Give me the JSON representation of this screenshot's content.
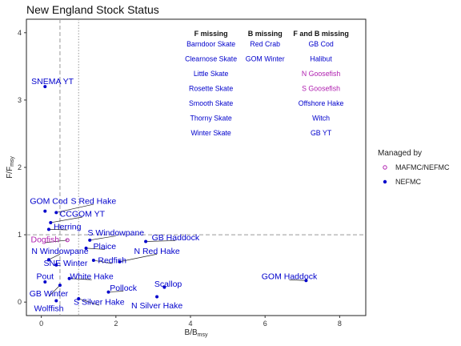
{
  "chart_data": {
    "type": "scatter",
    "title": "New England Stock Status",
    "xlabel": {
      "main": "B",
      "sep": "/",
      "denom": "B",
      "sub": "msy"
    },
    "ylabel": {
      "main": "F",
      "sep": "/",
      "denom": "F",
      "sub": "msy"
    },
    "xlim": [
      -0.4,
      8.7
    ],
    "ylim": [
      -0.2,
      4.2
    ],
    "xticks": [
      0,
      2,
      4,
      6,
      8
    ],
    "yticks": [
      0,
      1,
      2,
      3,
      4
    ],
    "reference_lines": {
      "vertical": [
        0.5,
        1.0
      ],
      "horizontal": [
        1.0
      ]
    },
    "colors": {
      "NEFMC": "#0000cc",
      "MAFMC/NEFMC": "#b020b0"
    },
    "points": [
      {
        "name": "SNEMA YT",
        "x": 0.1,
        "y": 3.2,
        "group": "NEFMC",
        "lx": 0.3,
        "ly": 3.28
      },
      {
        "name": "GOM Cod",
        "x": 0.1,
        "y": 1.35,
        "group": "NEFMC",
        "lx": 0.2,
        "ly": 1.5
      },
      {
        "name": "S Red Hake",
        "x": 0.4,
        "y": 1.33,
        "group": "NEFMC",
        "lx": 1.4,
        "ly": 1.5
      },
      {
        "name": "CCGOM YT",
        "x": 0.25,
        "y": 1.18,
        "group": "NEFMC",
        "lx": 1.1,
        "ly": 1.31
      },
      {
        "name": "Herring",
        "x": 0.2,
        "y": 1.08,
        "group": "NEFMC",
        "lx": 0.7,
        "ly": 1.12
      },
      {
        "name": "Dogfish",
        "x": 0.7,
        "y": 0.92,
        "group": "MAFMC/NEFMC",
        "lx": 0.1,
        "ly": 0.93
      },
      {
        "name": "S Windowpane",
        "x": 1.3,
        "y": 0.92,
        "group": "NEFMC",
        "lx": 2.0,
        "ly": 1.03
      },
      {
        "name": "GB Haddock",
        "x": 2.8,
        "y": 0.9,
        "group": "NEFMC",
        "lx": 3.6,
        "ly": 0.96
      },
      {
        "name": "Plaice",
        "x": 1.2,
        "y": 0.8,
        "group": "NEFMC",
        "lx": 1.7,
        "ly": 0.83
      },
      {
        "name": "N Windowpane",
        "x": 0.2,
        "y": 0.63,
        "group": "NEFMC",
        "lx": 0.5,
        "ly": 0.76
      },
      {
        "name": "N Red Hake",
        "x": 2.1,
        "y": 0.6,
        "group": "NEFMC",
        "lx": 3.1,
        "ly": 0.76
      },
      {
        "name": "Redfish",
        "x": 1.4,
        "y": 0.62,
        "group": "NEFMC",
        "lx": 1.9,
        "ly": 0.62
      },
      {
        "name": "SNE Winter",
        "x": 0.4,
        "y": 0.55,
        "group": "NEFMC",
        "lx": 0.65,
        "ly": 0.58
      },
      {
        "name": "Pout",
        "x": 0.1,
        "y": 0.3,
        "group": "NEFMC",
        "lx": 0.1,
        "ly": 0.38
      },
      {
        "name": "White Hake",
        "x": 0.75,
        "y": 0.35,
        "group": "NEFMC",
        "lx": 1.35,
        "ly": 0.38
      },
      {
        "name": "GOM Haddock",
        "x": 7.1,
        "y": 0.32,
        "group": "NEFMC",
        "lx": 6.65,
        "ly": 0.38
      },
      {
        "name": "Scallop",
        "x": 3.3,
        "y": 0.22,
        "group": "NEFMC",
        "lx": 3.4,
        "ly": 0.27
      },
      {
        "name": "Pollock",
        "x": 1.8,
        "y": 0.15,
        "group": "NEFMC",
        "lx": 2.2,
        "ly": 0.21
      },
      {
        "name": "GB Winter",
        "x": 0.5,
        "y": 0.25,
        "group": "NEFMC",
        "lx": 0.2,
        "ly": 0.13
      },
      {
        "name": "S Silver Hake",
        "x": 1.0,
        "y": 0.05,
        "group": "NEFMC",
        "lx": 1.55,
        "ly": 0.0
      },
      {
        "name": "N Silver Hake",
        "x": 3.1,
        "y": 0.08,
        "group": "NEFMC",
        "lx": 3.1,
        "ly": -0.05
      },
      {
        "name": "Wolffish",
        "x": 0.4,
        "y": 0.02,
        "group": "NEFMC",
        "lx": 0.2,
        "ly": -0.09
      }
    ],
    "missing_table": {
      "columns": [
        {
          "header": "F missing",
          "items": [
            {
              "name": "Barndoor Skate",
              "group": "NEFMC"
            },
            {
              "name": "Clearnose Skate",
              "group": "NEFMC"
            },
            {
              "name": "Little Skate",
              "group": "NEFMC"
            },
            {
              "name": "Rosette Skate",
              "group": "NEFMC"
            },
            {
              "name": "Smooth Skate",
              "group": "NEFMC"
            },
            {
              "name": "Thorny Skate",
              "group": "NEFMC"
            },
            {
              "name": "Winter Skate",
              "group": "NEFMC"
            }
          ]
        },
        {
          "header": "B missing",
          "items": [
            {
              "name": "Red Crab",
              "group": "NEFMC"
            },
            {
              "name": "GOM Winter",
              "group": "NEFMC"
            }
          ]
        },
        {
          "header": "F and B missing",
          "items": [
            {
              "name": "GB Cod",
              "group": "NEFMC"
            },
            {
              "name": "Halibut",
              "group": "NEFMC"
            },
            {
              "name": "N Goosefish",
              "group": "MAFMC/NEFMC"
            },
            {
              "name": "S Goosefish",
              "group": "MAFMC/NEFMC"
            },
            {
              "name": "Offshore Hake",
              "group": "NEFMC"
            },
            {
              "name": "Witch",
              "group": "NEFMC"
            },
            {
              "name": "GB YT",
              "group": "NEFMC"
            }
          ]
        }
      ]
    },
    "legend": {
      "title": "Managed by",
      "placement": "right",
      "entries": [
        {
          "label": "MAFMC/NEFMC",
          "group": "MAFMC/NEFMC",
          "marker": "open-circle"
        },
        {
          "label": "NEFMC",
          "group": "NEFMC",
          "marker": "filled-circle"
        }
      ]
    }
  }
}
